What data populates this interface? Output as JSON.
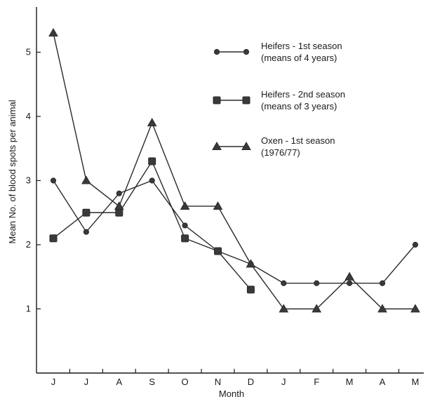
{
  "chart_data": {
    "type": "line",
    "xlabel": "Month",
    "ylabel": "Mean No. of blood spots per animal",
    "categories": [
      "J",
      "J",
      "A",
      "S",
      "O",
      "N",
      "D",
      "J",
      "F",
      "M",
      "A",
      "M"
    ],
    "yticks": [
      1,
      2,
      3,
      4,
      5
    ],
    "ylim": [
      0,
      5.8
    ],
    "grid": false,
    "legend_position": "top-right",
    "series": [
      {
        "name": "Heifers - 1st season",
        "name_line2": "(means of 4 years)",
        "marker": "circle",
        "values": [
          3.0,
          2.2,
          2.8,
          3.0,
          2.3,
          1.9,
          1.7,
          1.4,
          1.4,
          1.4,
          1.4,
          2.0
        ]
      },
      {
        "name": "Heifers - 2nd season",
        "name_line2": "(means of 3 years)",
        "marker": "square",
        "values": [
          2.1,
          2.5,
          2.5,
          3.3,
          2.1,
          1.9,
          1.3,
          null,
          null,
          null,
          null,
          null
        ]
      },
      {
        "name": "Oxen - 1st season",
        "name_line2": "(1976/77)",
        "marker": "triangle",
        "values": [
          5.3,
          3.0,
          2.6,
          3.9,
          2.6,
          2.6,
          1.7,
          1.0,
          1.0,
          1.5,
          1.0,
          1.0
        ]
      }
    ]
  }
}
